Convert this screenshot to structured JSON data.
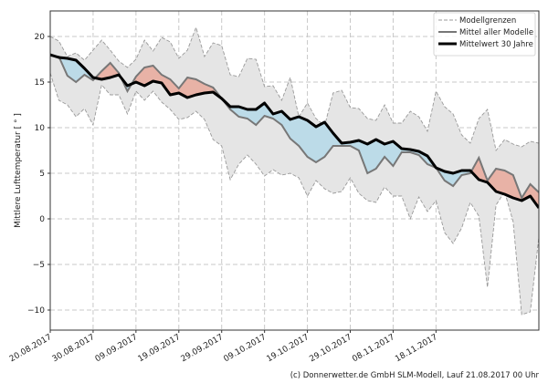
{
  "chart_data": {
    "type": "area",
    "title": "",
    "xlabel": "",
    "ylabel": "Mittlere Lufttemperatur [ ° ]",
    "x_unit": "days since 20.08.2017",
    "xlim": [
      0,
      114
    ],
    "ylim": [
      -12.2,
      22.8
    ],
    "yticks": [
      -10,
      -5,
      0,
      5,
      10,
      15,
      20
    ],
    "xticks": [
      {
        "day": 0,
        "label": "20.08.2017"
      },
      {
        "day": 10,
        "label": "30.08.2017"
      },
      {
        "day": 20,
        "label": "09.09.2017"
      },
      {
        "day": 30,
        "label": "19.09.2017"
      },
      {
        "day": 40,
        "label": "29.09.2017"
      },
      {
        "day": 50,
        "label": "09.10.2017"
      },
      {
        "day": 60,
        "label": "19.10.2017"
      },
      {
        "day": 70,
        "label": "29.10.2017"
      },
      {
        "day": 80,
        "label": "08.11.2017"
      },
      {
        "day": 90,
        "label": "18.11.2017"
      }
    ],
    "grid": true,
    "legend_position": "top-right",
    "x_step_days": 2,
    "series": [
      {
        "name": "Modellgrenzen (oben)",
        "legend": false,
        "values": [
          20.0,
          19.5,
          17.8,
          18.2,
          17.4,
          18.5,
          19.6,
          18.5,
          17.3,
          16.6,
          17.5,
          19.6,
          18.4,
          19.9,
          19.4,
          17.6,
          18.5,
          21.0,
          17.8,
          19.3,
          19.0,
          15.8,
          15.6,
          17.6,
          17.5,
          14.5,
          14.6,
          13.0,
          15.5,
          11.2,
          12.7,
          11.0,
          10.2,
          13.8,
          14.1,
          12.2,
          12.1,
          11.0,
          10.8,
          12.5,
          10.5,
          10.5,
          11.8,
          11.2,
          9.6,
          14.0,
          12.3,
          11.5,
          9.2,
          8.3,
          11.0,
          12.0,
          7.5,
          8.7,
          8.2,
          7.9,
          8.5,
          8.3
        ]
      },
      {
        "name": "Modellgrenzen (unten)",
        "legend": false,
        "values": [
          16.0,
          13.0,
          12.5,
          11.2,
          12.1,
          10.3,
          14.7,
          13.6,
          13.6,
          11.5,
          14.0,
          13.0,
          14.0,
          12.8,
          12.0,
          10.9,
          11.1,
          11.8,
          10.9,
          8.7,
          8.0,
          4.3,
          6.0,
          7.0,
          6.0,
          4.7,
          5.4,
          4.8,
          5.0,
          4.5,
          2.5,
          4.2,
          3.3,
          2.8,
          3.0,
          4.5,
          2.8,
          2.0,
          1.8,
          3.5,
          2.5,
          2.5,
          0.0,
          2.4,
          0.8,
          2.0,
          -1.5,
          -2.7,
          -1.0,
          1.8,
          0.3,
          -7.5,
          1.5,
          3.0,
          -0.3,
          -10.5,
          -10.2,
          -2.0
        ]
      },
      {
        "name": "Mittel aller Modelle",
        "values": [
          17.9,
          17.8,
          15.7,
          15.0,
          15.8,
          15.2,
          16.2,
          17.1,
          16.0,
          14.0,
          15.6,
          16.6,
          16.8,
          15.8,
          15.3,
          14.3,
          15.5,
          15.3,
          14.8,
          14.4,
          13.2,
          12.0,
          11.2,
          11.0,
          10.3,
          11.3,
          11.0,
          10.3,
          8.8,
          8.0,
          6.8,
          6.2,
          6.8,
          8.0,
          8.0,
          8.0,
          7.5,
          5.0,
          5.5,
          6.8,
          5.8,
          7.3,
          7.3,
          7.0,
          6.0,
          5.6,
          4.2,
          3.6,
          4.8,
          5.0,
          6.7,
          4.2,
          5.5,
          5.3,
          4.8,
          2.3,
          3.8,
          2.9
        ]
      },
      {
        "name": "Mittelwert 30 Jahre",
        "values": [
          18.0,
          17.7,
          17.6,
          17.4,
          16.5,
          15.5,
          15.3,
          15.5,
          15.8,
          14.6,
          15.0,
          14.6,
          15.1,
          14.9,
          13.6,
          13.8,
          13.3,
          13.6,
          13.8,
          13.9,
          13.2,
          12.3,
          12.3,
          12.0,
          12.0,
          12.7,
          11.5,
          11.8,
          10.9,
          11.2,
          10.8,
          10.1,
          10.6,
          9.4,
          8.3,
          8.4,
          8.6,
          8.2,
          8.7,
          8.2,
          8.5,
          7.7,
          7.6,
          7.4,
          6.9,
          5.6,
          5.2,
          5.0,
          5.3,
          5.3,
          4.3,
          4.0,
          3.0,
          2.7,
          2.3,
          2.0,
          2.5,
          1.2
        ]
      }
    ],
    "legend": [
      "Modellgrenzen",
      "Mittel aller Modelle",
      "Mittelwert 30 Jahre"
    ],
    "colors": {
      "band": "#e5e5e5",
      "band_edge": "#999999",
      "above": "#e8b2a6",
      "below": "#bcdbe8",
      "model_mean": "#777777",
      "climate": "#000000"
    }
  },
  "credit": "(c) Donnerwetter.de GmbH SLM-Modell, Lauf 21.08.2017 00 Uhr"
}
